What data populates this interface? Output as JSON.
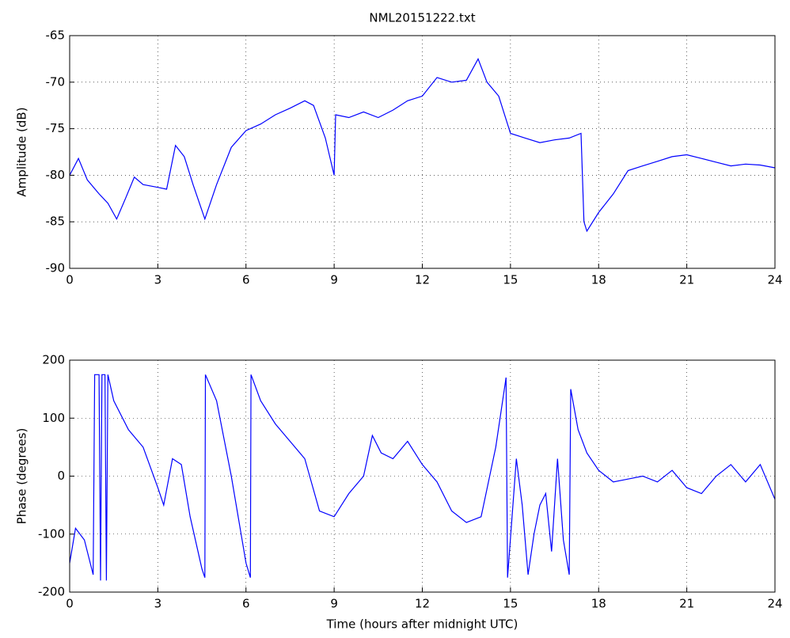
{
  "chart_data": [
    {
      "type": "line",
      "title": "NML20151222.txt",
      "ylabel": "Amplitude (dB)",
      "color": "#0000ff",
      "grid": true,
      "xlim": [
        0,
        24
      ],
      "xticks": [
        0,
        3,
        6,
        9,
        12,
        15,
        18,
        21,
        24
      ],
      "ylim": [
        -90,
        -65
      ],
      "yticks": [
        -90,
        -85,
        -80,
        -75,
        -70,
        -65
      ],
      "x": [
        0,
        0.3,
        0.6,
        1,
        1.3,
        1.6,
        1.9,
        2.2,
        2.5,
        3,
        3.3,
        3.6,
        3.9,
        4.2,
        4.6,
        5,
        5.5,
        6,
        6.5,
        7,
        7.5,
        8,
        8.3,
        8.7,
        9,
        9.05,
        9.5,
        10,
        10.5,
        11,
        11.5,
        12,
        12.5,
        13,
        13.5,
        13.9,
        14.2,
        14.6,
        15,
        15.5,
        16,
        16.5,
        17,
        17.4,
        17.5,
        17.6,
        18,
        18.5,
        19,
        19.5,
        20,
        20.5,
        21,
        21.5,
        22,
        22.5,
        23,
        23.5,
        24
      ],
      "values": [
        -80,
        -78.2,
        -80.5,
        -82,
        -83,
        -84.7,
        -82.5,
        -80.2,
        -81,
        -81.3,
        -81.5,
        -76.8,
        -78,
        -81,
        -84.7,
        -81,
        -77,
        -75.2,
        -74.5,
        -73.5,
        -72.8,
        -72,
        -72.5,
        -76,
        -80,
        -73.5,
        -73.8,
        -73.2,
        -73.8,
        -73,
        -72,
        -71.5,
        -69.5,
        -70,
        -69.8,
        -67.5,
        -70,
        -71.5,
        -75.5,
        -76,
        -76.5,
        -76.2,
        -76,
        -75.5,
        -85,
        -86,
        -84,
        -82,
        -79.5,
        -79,
        -78.5,
        -78,
        -77.8,
        -78.2,
        -78.6,
        -79,
        -78.8,
        -78.9,
        -79.2
      ]
    },
    {
      "type": "line",
      "xlabel": "Time (hours after midnight UTC)",
      "ylabel": "Phase (degrees)",
      "color": "#0000ff",
      "grid": true,
      "xlim": [
        0,
        24
      ],
      "xticks": [
        0,
        3,
        6,
        9,
        12,
        15,
        18,
        21,
        24
      ],
      "ylim": [
        -200,
        200
      ],
      "yticks": [
        -200,
        -100,
        0,
        100,
        200
      ],
      "x": [
        0,
        0.2,
        0.5,
        0.8,
        0.85,
        1,
        1.05,
        1.1,
        1.2,
        1.25,
        1.3,
        1.5,
        2,
        2.5,
        3,
        3.2,
        3.5,
        3.8,
        4.1,
        4.5,
        4.6,
        4.62,
        5,
        5.5,
        6,
        6.15,
        6.17,
        6.5,
        7,
        7.5,
        8,
        8.5,
        9,
        9.5,
        10,
        10.3,
        10.6,
        11,
        11.5,
        12,
        12.5,
        13,
        13.5,
        14,
        14.5,
        14.85,
        14.9,
        15.2,
        15.4,
        15.6,
        15.8,
        16,
        16.2,
        16.4,
        16.6,
        16.8,
        17,
        17.05,
        17.3,
        17.6,
        18,
        18.5,
        19,
        19.5,
        20,
        20.5,
        21,
        21.5,
        22,
        22.5,
        23,
        23.5,
        24
      ],
      "values": [
        -150,
        -90,
        -110,
        -170,
        175,
        175,
        -180,
        175,
        175,
        -180,
        175,
        130,
        80,
        50,
        -20,
        -50,
        30,
        20,
        -70,
        -160,
        -175,
        175,
        130,
        0,
        -150,
        -175,
        175,
        130,
        90,
        60,
        30,
        -60,
        -70,
        -30,
        0,
        70,
        40,
        30,
        60,
        20,
        -10,
        -60,
        -80,
        -70,
        50,
        170,
        -175,
        30,
        -50,
        -170,
        -100,
        -50,
        -30,
        -130,
        30,
        -110,
        -170,
        150,
        80,
        40,
        10,
        -10,
        -5,
        0,
        -10,
        10,
        -20,
        -30,
        0,
        20,
        -10,
        20,
        -40
      ]
    }
  ]
}
